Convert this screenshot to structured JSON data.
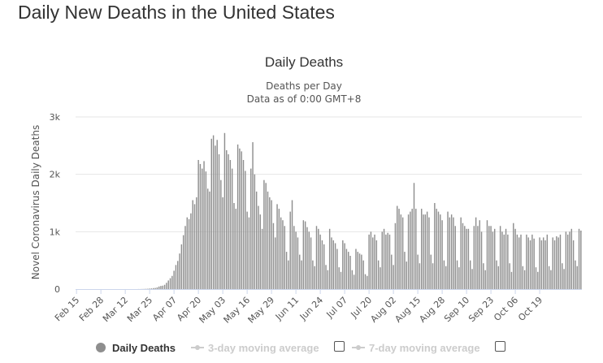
{
  "page": {
    "heading": "Daily New Deaths in the United States"
  },
  "chart_data": {
    "type": "bar",
    "title": "Daily Deaths",
    "subtitle_lines": [
      "Deaths per Day",
      "Data as of 0:00 GMT+8"
    ],
    "ylabel": "Novel Coronavirus Daily Deaths",
    "xlabel": "",
    "ylim": [
      0,
      3000
    ],
    "y_ticks": [
      {
        "value": 0,
        "label": "0"
      },
      {
        "value": 1000,
        "label": "1k"
      },
      {
        "value": 2000,
        "label": "2k"
      },
      {
        "value": 3000,
        "label": "3k"
      }
    ],
    "x_tick_labels": [
      "Feb 15",
      "Feb 28",
      "Mar 12",
      "Mar 25",
      "Apr 07",
      "Apr 20",
      "May 03",
      "May 16",
      "May 29",
      "Jun 11",
      "Jun 24",
      "Jul 07",
      "Jul 20",
      "Aug 02",
      "Aug 15",
      "Aug 28",
      "Sep 10",
      "Sep 23",
      "Oct 06",
      "Oct 19"
    ],
    "start_date": "Feb 15",
    "x_tick_interval_days": 13,
    "bar_color": "#8e8e8e",
    "grid": true,
    "legend_position": "bottom",
    "values": [
      0,
      0,
      0,
      0,
      0,
      0,
      0,
      0,
      0,
      0,
      0,
      0,
      0,
      0,
      0,
      0,
      0,
      0,
      0,
      0,
      0,
      0,
      0,
      0,
      0,
      0,
      0,
      0,
      0,
      0,
      0,
      0,
      0,
      1,
      1,
      2,
      3,
      5,
      6,
      9,
      12,
      17,
      20,
      30,
      45,
      55,
      60,
      75,
      110,
      150,
      190,
      230,
      320,
      420,
      490,
      620,
      780,
      940,
      1100,
      1250,
      1220,
      1320,
      1550,
      1480,
      1600,
      2250,
      2180,
      2100,
      2230,
      2050,
      1750,
      1700,
      2620,
      2680,
      2500,
      2600,
      2350,
      1900,
      1600,
      2720,
      2420,
      2350,
      2250,
      2100,
      1500,
      1400,
      2520,
      2450,
      2400,
      2250,
      2060,
      1350,
      1250,
      2100,
      2560,
      2000,
      1700,
      1450,
      1300,
      1050,
      1900,
      1850,
      1700,
      1600,
      1550,
      1150,
      900,
      1480,
      1400,
      1250,
      1200,
      1100,
      650,
      500,
      1350,
      1550,
      1100,
      1000,
      900,
      600,
      500,
      1200,
      1180,
      1080,
      1000,
      900,
      500,
      400,
      1100,
      1050,
      950,
      850,
      780,
      420,
      330,
      1050,
      900,
      850,
      800,
      700,
      380,
      300,
      850,
      800,
      700,
      650,
      580,
      330,
      250,
      700,
      650,
      620,
      600,
      500,
      260,
      230,
      950,
      1000,
      900,
      950,
      850,
      500,
      380,
      1000,
      1050,
      950,
      980,
      950,
      600,
      420,
      1150,
      1450,
      1400,
      1300,
      1250,
      650,
      480,
      1300,
      1350,
      1400,
      1850,
      1400,
      600,
      450,
      1400,
      1300,
      1300,
      1350,
      1250,
      600,
      450,
      1500,
      1400,
      1350,
      1300,
      1200,
      500,
      400,
      1350,
      1250,
      1300,
      1250,
      1100,
      500,
      380,
      1250,
      1150,
      1100,
      1050,
      1050,
      500,
      350,
      1100,
      1250,
      1100,
      1200,
      1000,
      450,
      330,
      1200,
      1100,
      1100,
      1000,
      1050,
      500,
      400,
      1100,
      1000,
      950,
      1050,
      950,
      450,
      300,
      1150,
      1050,
      950,
      900,
      950,
      400,
      330,
      950,
      900,
      850,
      950,
      880,
      380,
      300,
      900,
      850,
      900,
      850,
      950,
      400,
      330,
      900,
      850,
      920,
      900,
      950,
      450,
      350,
      1000,
      950,
      1000,
      1050,
      850,
      500,
      400,
      1050,
      1020
    ]
  },
  "legend": {
    "items": [
      {
        "label": "Daily Deaths",
        "active": true
      },
      {
        "label": "3-day moving average",
        "active": false
      },
      {
        "label": "7-day moving average",
        "active": false
      }
    ]
  }
}
